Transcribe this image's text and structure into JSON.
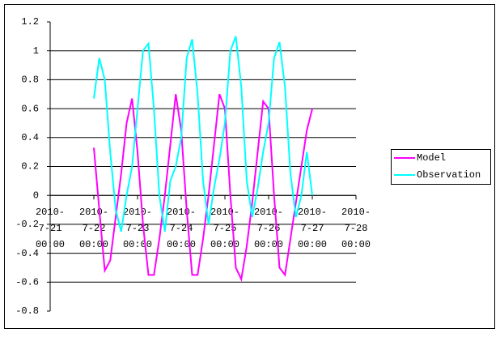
{
  "chart_data": {
    "type": "line",
    "x": [
      "2010-07-22 00:00",
      "2010-07-22 03:00",
      "2010-07-22 06:00",
      "2010-07-22 09:00",
      "2010-07-22 12:00",
      "2010-07-22 15:00",
      "2010-07-22 18:00",
      "2010-07-22 21:00",
      "2010-07-23 00:00",
      "2010-07-23 03:00",
      "2010-07-23 06:00",
      "2010-07-23 09:00",
      "2010-07-23 12:00",
      "2010-07-23 15:00",
      "2010-07-23 18:00",
      "2010-07-23 21:00",
      "2010-07-24 00:00",
      "2010-07-24 03:00",
      "2010-07-24 06:00",
      "2010-07-24 09:00",
      "2010-07-24 12:00",
      "2010-07-24 15:00",
      "2010-07-24 18:00",
      "2010-07-24 21:00",
      "2010-07-25 00:00",
      "2010-07-25 03:00",
      "2010-07-25 06:00",
      "2010-07-25 09:00",
      "2010-07-25 12:00",
      "2010-07-25 15:00",
      "2010-07-25 18:00",
      "2010-07-25 21:00",
      "2010-07-26 00:00",
      "2010-07-26 03:00",
      "2010-07-26 06:00",
      "2010-07-26 09:00",
      "2010-07-26 12:00",
      "2010-07-26 15:00",
      "2010-07-26 18:00",
      "2010-07-26 21:00",
      "2010-07-27 00:00"
    ],
    "series": [
      {
        "name": "Model",
        "color": "#ff00ff",
        "values": [
          0.33,
          -0.1,
          -0.52,
          -0.45,
          -0.15,
          0.15,
          0.5,
          0.67,
          0.3,
          -0.2,
          -0.55,
          -0.55,
          -0.3,
          0.0,
          0.35,
          0.7,
          0.45,
          -0.1,
          -0.55,
          -0.55,
          -0.3,
          0.0,
          0.35,
          0.7,
          0.6,
          0.0,
          -0.5,
          -0.58,
          -0.35,
          -0.05,
          0.3,
          0.65,
          0.6,
          0.0,
          -0.5,
          -0.55,
          -0.3,
          -0.05,
          0.2,
          0.45,
          0.6
        ]
      },
      {
        "name": "Observation",
        "color": "#00ffff",
        "values": [
          0.67,
          0.95,
          0.8,
          0.3,
          -0.1,
          -0.25,
          0.0,
          0.2,
          0.6,
          1.0,
          1.05,
          0.6,
          0.0,
          -0.25,
          0.1,
          0.2,
          0.4,
          0.95,
          1.08,
          0.7,
          0.1,
          -0.2,
          0.05,
          0.25,
          0.5,
          1.0,
          1.1,
          0.75,
          0.1,
          -0.15,
          0.05,
          0.3,
          0.5,
          0.95,
          1.06,
          0.75,
          0.15,
          -0.15,
          0.0,
          0.3,
          0.0
        ]
      }
    ],
    "xlim": [
      "2010-07-21 00:00",
      "2010-07-28 00:00"
    ],
    "xticks": [
      {
        "value": "2010-07-21 00:00",
        "label": "2010-7-21 00:00"
      },
      {
        "value": "2010-07-22 00:00",
        "label": "2010-7-22 00:00"
      },
      {
        "value": "2010-07-23 00:00",
        "label": "2010-7-23 00:00"
      },
      {
        "value": "2010-07-24 00:00",
        "label": "2010-7-24 00:00"
      },
      {
        "value": "2010-07-25 00:00",
        "label": "2010-7-25 00:00"
      },
      {
        "value": "2010-07-26 00:00",
        "label": "2010-7-26 00:00"
      },
      {
        "value": "2010-07-27 00:00",
        "label": "2010-7-27 00:00"
      },
      {
        "value": "2010-07-28 00:00",
        "label": "2010-7-28 00:00"
      }
    ],
    "ylim": [
      -0.8,
      1.2
    ],
    "yticks": [
      -0.8,
      -0.6,
      -0.4,
      -0.2,
      0,
      0.2,
      0.4,
      0.6,
      0.8,
      1,
      1.2
    ],
    "grid": true,
    "legend": "right"
  }
}
